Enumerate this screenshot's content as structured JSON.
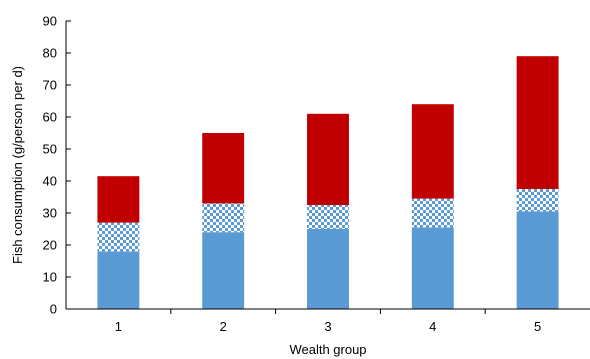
{
  "chart_data": {
    "type": "bar",
    "stacked": true,
    "categories": [
      "1",
      "2",
      "3",
      "4",
      "5"
    ],
    "series": [
      {
        "values": [
          18,
          24,
          25,
          25.5,
          30.5
        ],
        "color": "#5b9bd5",
        "pattern": "solid"
      },
      {
        "values": [
          9,
          9,
          7.5,
          9,
          7
        ],
        "color": "#5b9bd5",
        "pattern": "checkered"
      },
      {
        "values": [
          14.5,
          22,
          28.5,
          29.5,
          41.5
        ],
        "color": "#c00000",
        "pattern": "solid"
      }
    ],
    "xlabel": "Wealth group",
    "ylabel": "Fish consumption (g/person per d)",
    "ylim": [
      0,
      90
    ],
    "yticks": [
      0,
      10,
      20,
      30,
      40,
      50,
      60,
      70,
      80,
      90
    ],
    "grid": false,
    "legend": "none"
  }
}
